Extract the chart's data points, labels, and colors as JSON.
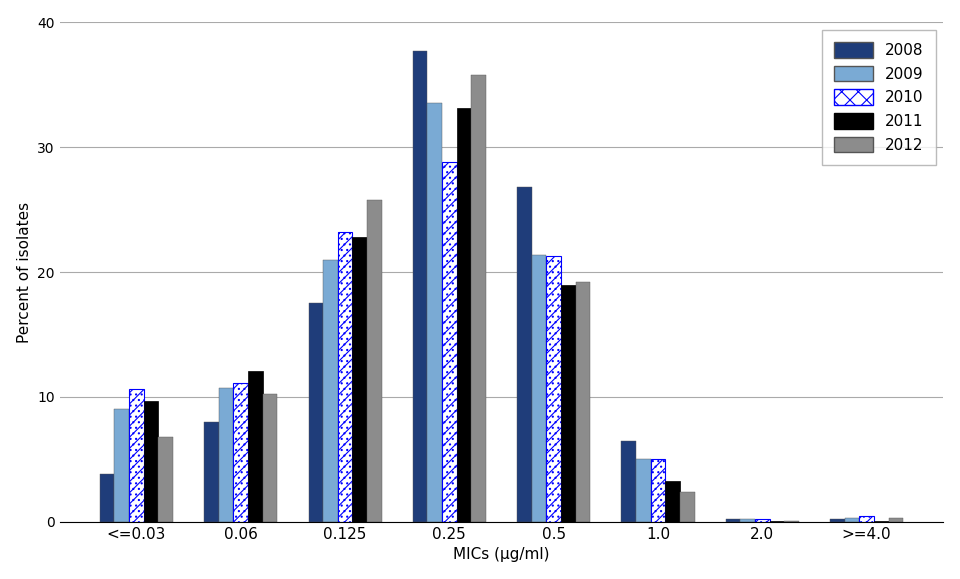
{
  "categories": [
    "<=0.03",
    "0.06",
    "0.125",
    "0.25",
    "0.5",
    "1.0",
    "2.0",
    ">=4.0"
  ],
  "years": [
    "2008",
    "2009",
    "2010",
    "2011",
    "2012"
  ],
  "values": {
    "2008": [
      3.8,
      8.0,
      17.5,
      37.7,
      26.8,
      6.5,
      0.2,
      0.2
    ],
    "2009": [
      9.0,
      10.7,
      21.0,
      33.5,
      21.4,
      5.0,
      0.2,
      0.3
    ],
    "2010": [
      10.6,
      11.1,
      23.2,
      28.8,
      21.3,
      5.0,
      0.2,
      0.5
    ],
    "2011": [
      9.7,
      12.1,
      22.8,
      33.1,
      19.0,
      3.3,
      0.1,
      0.1
    ],
    "2012": [
      6.8,
      10.2,
      25.8,
      35.8,
      19.2,
      2.4,
      0.1,
      0.3
    ]
  },
  "bar_colors": {
    "2008": "#1f3d7a",
    "2009": "#7aaad4",
    "2010": "#ffffff",
    "2011": "#000000",
    "2012": "#8c8c8c"
  },
  "hatch_color": "#0000ff",
  "ylabel": "Percent of isolates",
  "xlabel": "MICs (μg/ml)",
  "ylim": [
    0,
    40
  ],
  "yticks": [
    0,
    10,
    20,
    30,
    40
  ],
  "bar_width": 0.14,
  "figsize": [
    9.6,
    5.79
  ],
  "dpi": 100
}
